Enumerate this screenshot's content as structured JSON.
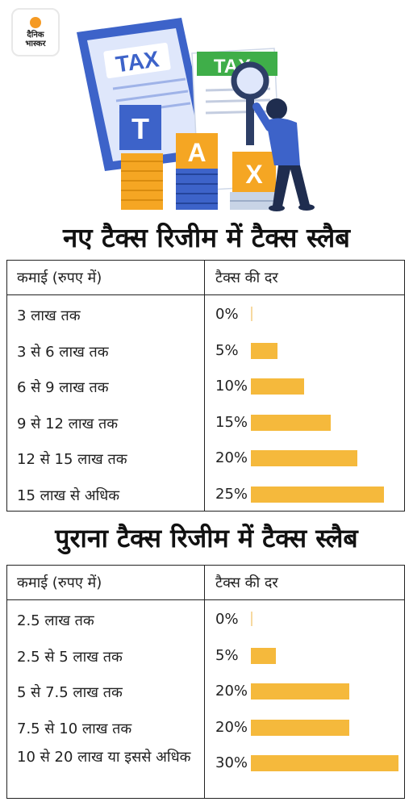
{
  "logo": {
    "line1": "दैनिक",
    "line2": "भास्कर"
  },
  "illustration": {
    "sheet1_label": "TAX",
    "sheet2_label": "TAX",
    "blocks": [
      "T",
      "A",
      "X"
    ]
  },
  "colors": {
    "bar": "#f5b93c",
    "border": "#222222",
    "paper": "#3d63c9",
    "green": "#3fae49",
    "gold": "#f5a623"
  },
  "chart_data": [
    {
      "type": "bar",
      "title": "नए टैक्स रिजीम में टैक्स स्लैब",
      "column_headers": [
        "कमाई (रुपए में)",
        "टैक्स की दर"
      ],
      "categories": [
        "3 लाख तक",
        "3 से 6 लाख तक",
        "6 से 9 लाख तक",
        "9 से 12 लाख तक",
        "12 से 15 लाख तक",
        "15 लाख से अधिक"
      ],
      "labels": [
        "0%",
        "5%",
        "10%",
        "15%",
        "20%",
        "25%"
      ],
      "values": [
        0,
        5,
        10,
        15,
        20,
        25
      ]
    },
    {
      "type": "bar",
      "title": "पुराना टैक्स रिजीम में टैक्स स्लैब",
      "column_headers": [
        "कमाई (रुपए में)",
        "टैक्स की दर"
      ],
      "categories": [
        "2.5 लाख तक",
        "2.5 से 5 लाख तक",
        "5 से 7.5 लाख तक",
        "7.5 से 10 लाख तक",
        "10 से 20 लाख या इससे अधिक"
      ],
      "labels": [
        "0%",
        "5%",
        "20%",
        "20%",
        "30%"
      ],
      "values": [
        0,
        5,
        20,
        20,
        30
      ]
    }
  ]
}
